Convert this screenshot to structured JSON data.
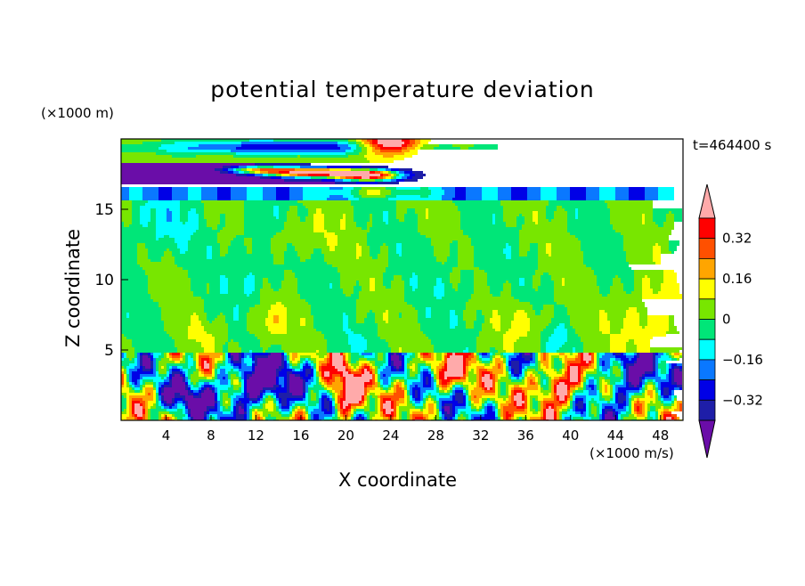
{
  "chart_data": {
    "type": "heatmap",
    "title": "potential temperature deviation",
    "xlabel": "X coordinate",
    "ylabel": "Z coordinate",
    "x_units": "(×1000 m/s)",
    "y_units": "(×1000 m)",
    "time_label": "t=464400 s",
    "xlim": [
      0,
      50
    ],
    "ylim": [
      0,
      20
    ],
    "x_ticks": [
      4,
      8,
      12,
      16,
      20,
      24,
      28,
      32,
      36,
      40,
      44,
      48
    ],
    "x_tick_labels": [
      "4",
      "8",
      "12",
      "16",
      "20",
      "24",
      "28",
      "32",
      "36",
      "40",
      "44",
      "48"
    ],
    "y_ticks": [
      5,
      10,
      15
    ],
    "y_tick_labels": [
      "5",
      "10",
      "15"
    ],
    "grid": false,
    "colorbar": {
      "levels": [
        -0.48,
        -0.4,
        -0.32,
        -0.24,
        -0.16,
        -0.08,
        0,
        0.08,
        0.16,
        0.24,
        0.32,
        0.4
      ],
      "colors": [
        "#6a0da8",
        "#1e1ea8",
        "#0000e6",
        "#0a78ff",
        "#00ffff",
        "#00e678",
        "#78e600",
        "#ffff00",
        "#ffa500",
        "#ff5000",
        "#ff0000",
        "#ffaaaa"
      ],
      "tick_values": [
        -0.32,
        -0.16,
        0,
        0.16,
        0.32
      ],
      "tick_labels": [
        "−0.32",
        "−0.16",
        "0",
        "0.16",
        "0.32"
      ]
    }
  }
}
